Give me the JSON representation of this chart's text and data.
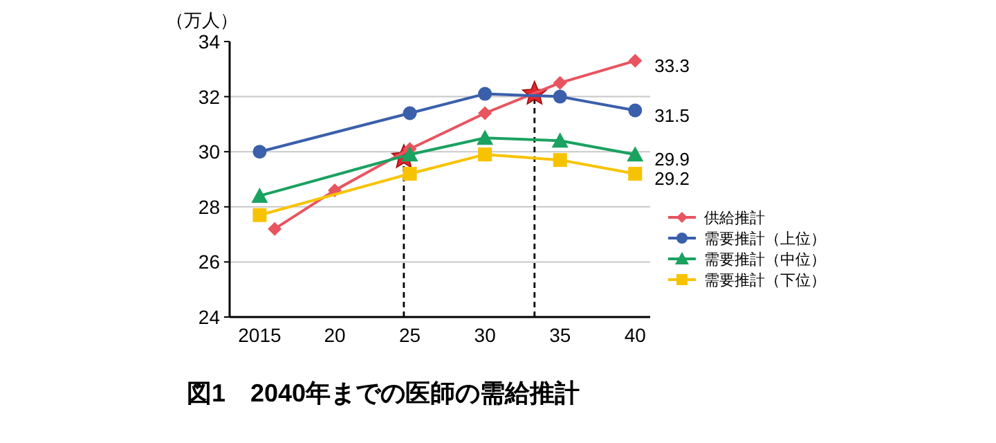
{
  "chart_data": {
    "type": "line",
    "title": "図1　2040年までの医師の需給推計",
    "ylabel": "（万人）",
    "xlim": [
      2013,
      2041
    ],
    "xticks": [
      {
        "value": 2015,
        "label": "2015"
      },
      {
        "value": 2020,
        "label": "20"
      },
      {
        "value": 2025,
        "label": "25"
      },
      {
        "value": 2030,
        "label": "30"
      },
      {
        "value": 2035,
        "label": "35"
      },
      {
        "value": 2040,
        "label": "40"
      }
    ],
    "ylim": [
      24,
      34
    ],
    "yticks": [
      24,
      26,
      28,
      30,
      32,
      34
    ],
    "grid": "y",
    "legend": "right",
    "series": [
      {
        "name": "供給推計",
        "color": "#e8545f",
        "marker": "diamond",
        "x": [
          2016,
          2020,
          2025,
          2030,
          2035,
          2040
        ],
        "values": [
          27.2,
          28.6,
          30.1,
          31.4,
          32.5,
          33.3
        ],
        "value_labels": [
          null,
          null,
          null,
          null,
          null,
          "33.3"
        ]
      },
      {
        "name": "需要推計（上位）",
        "color": "#3a5fab",
        "marker": "circle",
        "x": [
          2015,
          2025,
          2030,
          2035,
          2040
        ],
        "values": [
          30.0,
          31.4,
          32.1,
          32.0,
          31.5
        ],
        "value_labels": [
          null,
          null,
          null,
          null,
          "31.5"
        ]
      },
      {
        "name": "需要推計（中位）",
        "color": "#1aa260",
        "marker": "triangle",
        "x": [
          2015,
          2025,
          2030,
          2035,
          2040
        ],
        "values": [
          28.4,
          29.9,
          30.5,
          30.4,
          29.9
        ],
        "value_labels": [
          null,
          null,
          null,
          null,
          "29.9"
        ]
      },
      {
        "name": "需要推計（下位）",
        "color": "#f7c300",
        "marker": "square",
        "x": [
          2015,
          2025,
          2030,
          2035,
          2040
        ],
        "values": [
          27.7,
          29.2,
          29.9,
          29.7,
          29.2
        ],
        "value_labels": [
          null,
          null,
          null,
          null,
          "29.2"
        ]
      },
      {
        "type": "scatter",
        "color": "#e0262e",
        "marker": "star",
        "x": [
          2024.6,
          2033.3
        ],
        "values": [
          29.8,
          32.1
        ]
      }
    ],
    "ref_lines": [
      {
        "axis": "x",
        "value": 2024.6,
        "line_style": "dashed",
        "color": "#000000"
      },
      {
        "axis": "x",
        "value": 2033.3,
        "line_style": "dashed",
        "color": "#000000"
      }
    ]
  }
}
